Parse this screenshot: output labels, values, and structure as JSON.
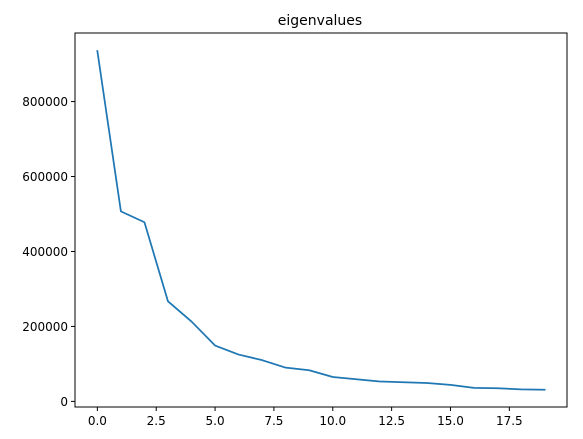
{
  "chart_data": {
    "type": "line",
    "title": "eigenvalues",
    "xlabel": "",
    "ylabel": "",
    "grid": false,
    "xlim": [
      -0.95,
      19.95
    ],
    "ylim": [
      -15000,
      983000
    ],
    "x_ticks": [
      0.0,
      2.5,
      5.0,
      7.5,
      10.0,
      12.5,
      15.0,
      17.5
    ],
    "x_tick_labels": [
      "0.0",
      "2.5",
      "5.0",
      "7.5",
      "10.0",
      "12.5",
      "15.0",
      "17.5"
    ],
    "y_ticks": [
      0,
      200000,
      400000,
      600000,
      800000
    ],
    "y_tick_labels": [
      "0",
      "200000",
      "400000",
      "600000",
      "800000"
    ],
    "series": [
      {
        "color": "#1f77b4",
        "x": [
          0,
          1,
          2,
          3,
          4,
          5,
          6,
          7,
          8,
          9,
          10,
          11,
          12,
          13,
          14,
          15,
          16,
          17,
          18,
          19
        ],
        "values": [
          935000,
          507000,
          478000,
          267000,
          213000,
          149000,
          125000,
          110000,
          90000,
          83000,
          65000,
          59000,
          53000,
          51000,
          49000,
          44000,
          36000,
          35000,
          32000,
          31000
        ]
      }
    ]
  }
}
